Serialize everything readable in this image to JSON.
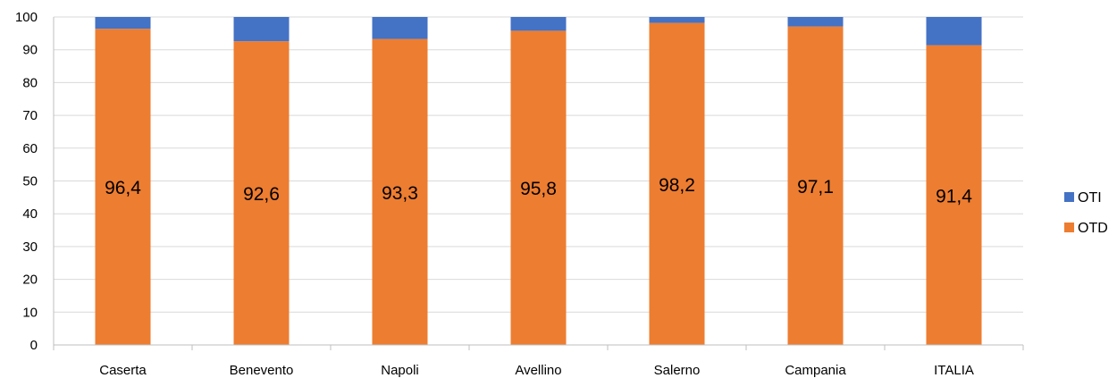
{
  "chart_data": {
    "type": "bar",
    "stacked": true,
    "percent_stacked": true,
    "categories": [
      "Caserta",
      "Benevento",
      "Napoli",
      "Avellino",
      "Salerno",
      "Campania",
      "ITALIA"
    ],
    "series": [
      {
        "name": "OTD",
        "color": "#ED7D31",
        "values": [
          96.4,
          92.6,
          93.3,
          95.8,
          98.2,
          97.1,
          91.4
        ],
        "data_labels": [
          "96,4",
          "92,6",
          "93,3",
          "95,8",
          "98,2",
          "97,1",
          "91,4"
        ]
      },
      {
        "name": "OTI",
        "color": "#4472C4",
        "values": [
          3.6,
          7.4,
          6.7,
          4.2,
          1.8,
          2.9,
          8.6
        ]
      }
    ],
    "legend_order": [
      "OTI",
      "OTD"
    ],
    "ylim": [
      0,
      100
    ],
    "yticks": [
      0,
      10,
      20,
      30,
      40,
      50,
      60,
      70,
      80,
      90,
      100
    ],
    "grid": true,
    "grid_color": "#D9D9D9",
    "legend_position": "right",
    "title": "",
    "xlabel": "",
    "ylabel": ""
  }
}
